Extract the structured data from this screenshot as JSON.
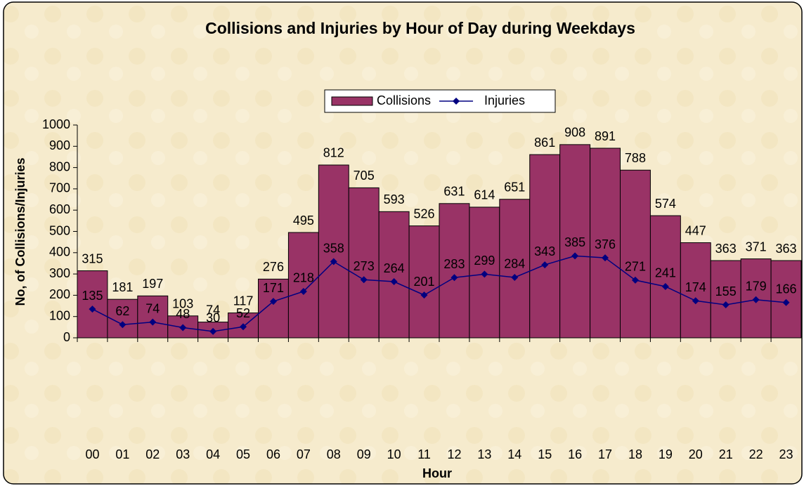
{
  "chart_data": {
    "type": "bar",
    "title": "Collisions and Injuries by Hour of Day during Weekdays",
    "x_label": "Hour",
    "y_label": "No, of Collisions/Injuries",
    "categories": [
      "00",
      "01",
      "02",
      "03",
      "04",
      "05",
      "06",
      "07",
      "08",
      "09",
      "10",
      "11",
      "12",
      "13",
      "14",
      "15",
      "16",
      "17",
      "18",
      "19",
      "20",
      "21",
      "22",
      "23"
    ],
    "series": [
      {
        "name": "Collisions",
        "type": "bar",
        "color": "#993366",
        "values": [
          315,
          181,
          197,
          103,
          74,
          117,
          276,
          495,
          812,
          705,
          593,
          526,
          631,
          614,
          651,
          861,
          908,
          891,
          788,
          574,
          447,
          363,
          371,
          363
        ]
      },
      {
        "name": "Injuries",
        "type": "line",
        "color": "#000080",
        "values": [
          135,
          62,
          74,
          48,
          30,
          52,
          171,
          218,
          358,
          273,
          264,
          201,
          283,
          299,
          284,
          343,
          385,
          376,
          271,
          241,
          174,
          155,
          179,
          166
        ]
      }
    ],
    "ylim": [
      0,
      1000
    ],
    "yticks": [
      0,
      100,
      200,
      300,
      400,
      500,
      600,
      700,
      800,
      900,
      1000
    ],
    "grid": false,
    "legend": "top"
  }
}
